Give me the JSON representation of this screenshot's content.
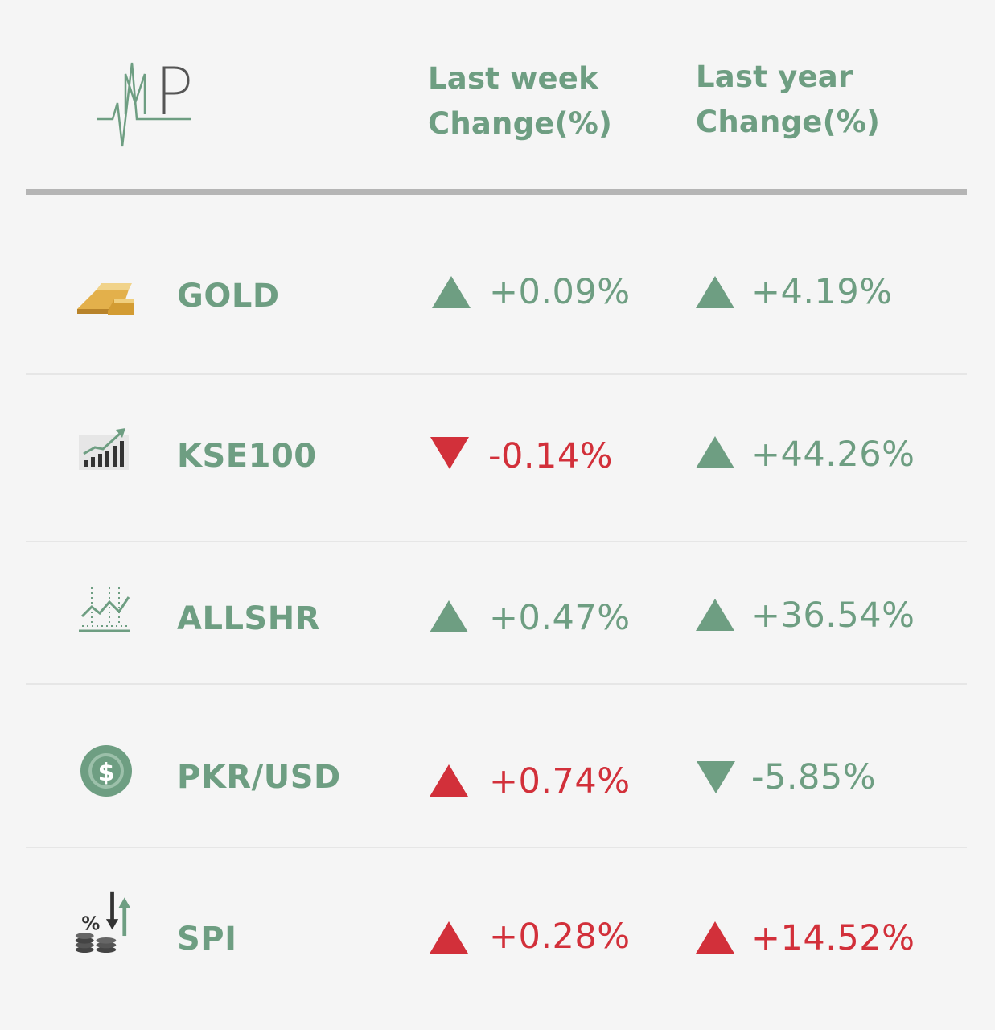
{
  "header": {
    "logo_label": "AMP",
    "col_week_line1": "Last week",
    "col_week_line2": "Change(%)",
    "col_year_line1": "Last year",
    "col_year_line2": "Change(%)"
  },
  "colors": {
    "accent_green": "#6e9e82",
    "alert_red": "#d2303a",
    "background": "#f5f5f5"
  },
  "rows": [
    {
      "name": "GOLD",
      "icon": "gold-bars-icon",
      "week": "+0.09%",
      "week_dir": "up",
      "week_color": "green",
      "year": "+4.19%",
      "year_dir": "up",
      "year_color": "green"
    },
    {
      "name": "KSE100",
      "icon": "rising-bar-chart-icon",
      "week": "-0.14%",
      "week_dir": "down",
      "week_color": "red",
      "year": "+44.26%",
      "year_dir": "up",
      "year_color": "green"
    },
    {
      "name": "ALLSHR",
      "icon": "line-chart-icon",
      "week": "+0.47%",
      "week_dir": "up",
      "week_color": "green",
      "year": "+36.54%",
      "year_dir": "up",
      "year_color": "green"
    },
    {
      "name": "PKR/USD",
      "icon": "dollar-coin-icon",
      "week": "+0.74%",
      "week_dir": "up",
      "week_color": "red",
      "year": "-5.85%",
      "year_dir": "down",
      "year_color": "green"
    },
    {
      "name": "SPI",
      "icon": "percent-coins-icon",
      "week": "+0.28%",
      "week_dir": "up",
      "week_color": "red",
      "year": "+14.52%",
      "year_dir": "up",
      "year_color": "red"
    }
  ]
}
